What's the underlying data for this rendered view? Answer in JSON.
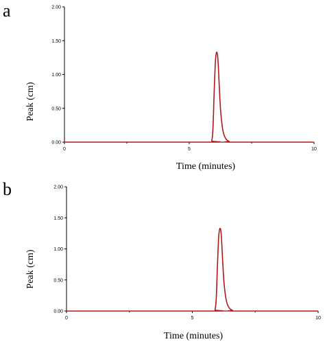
{
  "chart_data": [
    {
      "type": "line",
      "panel_label": "a",
      "xlabel": "Time (minutes)",
      "ylabel": "Peak (cm)",
      "xlim": [
        0,
        10
      ],
      "ylim": [
        0,
        2.0
      ],
      "x_ticks": [
        0,
        5,
        10
      ],
      "x_tick_labels": [
        "0",
        "5",
        "10"
      ],
      "y_ticks": [
        0,
        0.5,
        1.0,
        1.5,
        2.0
      ],
      "y_tick_labels": [
        "0.00",
        "0.50",
        "1.00",
        "1.50",
        "2.00"
      ],
      "grid": false,
      "color": "#b01818",
      "series": [
        {
          "x": [
            0,
            5.8,
            5.9,
            5.95,
            6.0,
            6.05,
            6.1,
            6.15,
            6.2,
            6.25,
            6.3,
            6.35,
            6.4,
            6.45,
            6.5,
            6.55,
            6.6,
            6.7,
            10
          ],
          "y": [
            0,
            0,
            0.02,
            0.2,
            0.75,
            1.2,
            1.33,
            1.22,
            0.85,
            0.5,
            0.3,
            0.17,
            0.1,
            0.06,
            0.035,
            0.02,
            0.01,
            0,
            0
          ]
        }
      ]
    },
    {
      "type": "line",
      "panel_label": "b",
      "xlabel": "Time (minutes)",
      "ylabel": "Peak (cm)",
      "xlim": [
        0,
        10
      ],
      "ylim": [
        0,
        2.0
      ],
      "x_ticks": [
        0,
        5,
        10
      ],
      "x_tick_labels": [
        "0",
        "5",
        "10"
      ],
      "y_ticks": [
        0,
        0.5,
        1.0,
        1.5,
        2.0
      ],
      "y_tick_labels": [
        "0.00",
        "0.50",
        "1.00",
        "1.50",
        "2.00"
      ],
      "grid": false,
      "color": "#b01818",
      "series": [
        {
          "x": [
            0,
            5.8,
            5.9,
            5.95,
            6.0,
            6.05,
            6.1,
            6.15,
            6.2,
            6.25,
            6.3,
            6.35,
            6.4,
            6.45,
            6.5,
            6.55,
            6.6,
            6.7,
            10
          ],
          "y": [
            0,
            0,
            0.02,
            0.2,
            0.75,
            1.2,
            1.33,
            1.22,
            0.85,
            0.5,
            0.3,
            0.17,
            0.1,
            0.06,
            0.035,
            0.02,
            0.01,
            0,
            0
          ]
        }
      ]
    }
  ]
}
